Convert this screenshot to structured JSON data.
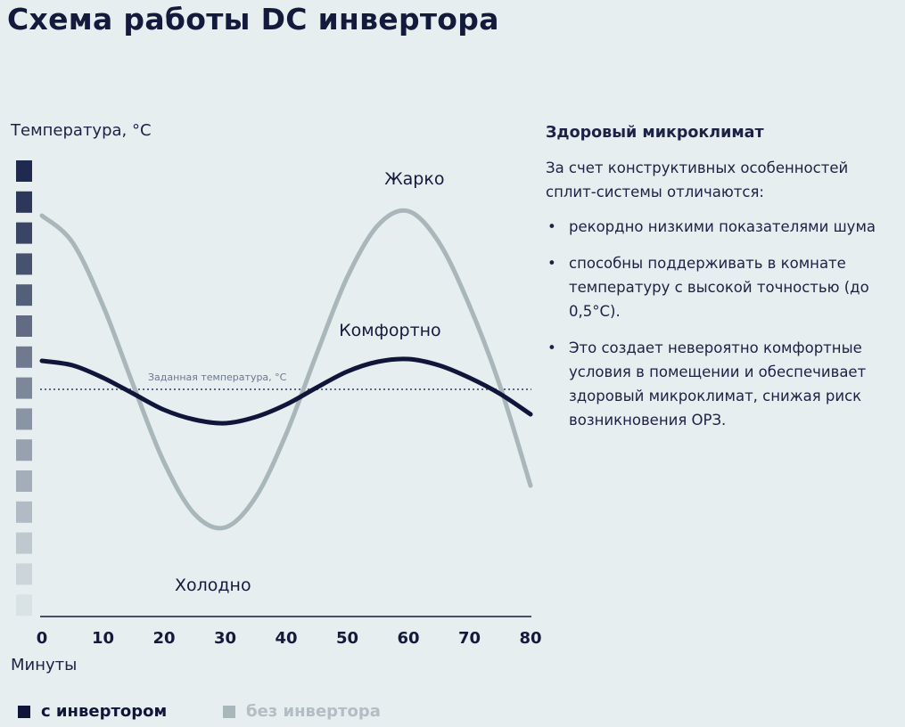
{
  "title": "Схема работы DC инвертора",
  "chart_data": {
    "type": "line",
    "ylabel": "Температура, °C",
    "xlabel": "Минуты",
    "x": [
      0,
      5,
      10,
      15,
      20,
      25,
      30,
      35,
      40,
      45,
      50,
      55,
      60,
      65,
      70,
      75,
      80
    ],
    "xticks": [
      0,
      10,
      20,
      30,
      40,
      50,
      60,
      70,
      80
    ],
    "xlim": [
      0,
      80
    ],
    "ylim": [
      -25.5,
      30
    ],
    "grid": false,
    "set_temperature": {
      "label": "Заданная температура, °C",
      "value": 0
    },
    "series": [
      {
        "name": "с инвертором",
        "color": "#10163a",
        "values": [
          3.2,
          2.7,
          1.3,
          -0.5,
          -2.3,
          -3.4,
          -3.8,
          -3.1,
          -1.7,
          0.2,
          2.0,
          3.1,
          3.4,
          2.7,
          1.3,
          -0.5,
          -2.8
        ]
      },
      {
        "name": "без инвертора",
        "color": "#a9b6ba",
        "values": [
          19.5,
          16.5,
          9.4,
          0.4,
          -8.2,
          -14.0,
          -15.5,
          -12.1,
          -5.0,
          4.0,
          12.6,
          18.4,
          20.0,
          16.5,
          9.4,
          0.4,
          -10.8
        ]
      }
    ],
    "annotations": [
      {
        "text": "Жарко",
        "x": 61,
        "y": 23
      },
      {
        "text": "Комфортно",
        "x": 57,
        "y": 6
      },
      {
        "text": "Холодно",
        "x": 28,
        "y": -22.6
      }
    ],
    "temperature_scale_colors": [
      "#1f2a4e",
      "#d9e3e5"
    ],
    "legend_position": "bottom-left"
  },
  "side": {
    "heading": "Здоровый микроклимат",
    "intro": "За счет конструктивных особенностей сплит-системы отличаются:",
    "bullet": "•",
    "items": [
      "рекордно низкими показателями шума",
      "способны поддерживать в комнате температуру с высокой точностью (до 0,5°C).",
      "Это создает невероятно комфортные условия в помещении и обеспечивает здоровый микроклимат, снижая риск возникновения ОРЗ."
    ]
  }
}
